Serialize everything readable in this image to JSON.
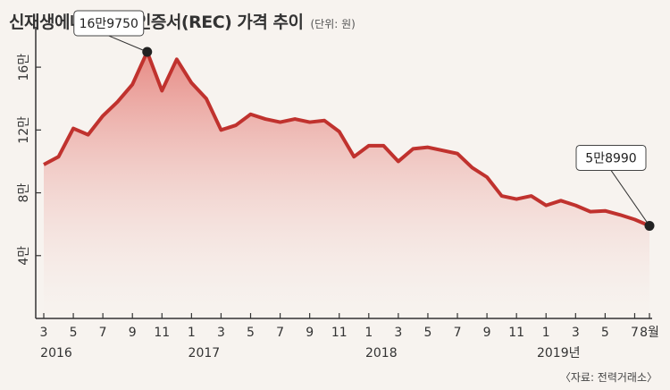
{
  "title": "신재생에너지 공급인증서(REC) 가격 추이",
  "unit": "(단위: 원)",
  "source": "〈자료: 전력거래소〉",
  "colors": {
    "line": "#c0322e",
    "fill_top": "#e78a84",
    "fill_bottom": "#f7f3ef",
    "axis": "#333333",
    "dot": "#222222"
  },
  "chart_data": {
    "type": "area",
    "ylim": [
      0,
      180000
    ],
    "y_ticks": [
      40000,
      80000,
      120000,
      160000
    ],
    "y_tick_labels": [
      "4만",
      "8만",
      "12만",
      "16만"
    ],
    "x_tick_labels": [
      "3",
      "5",
      "7",
      "9",
      "11",
      "1",
      "3",
      "5",
      "7",
      "9",
      "11",
      "1",
      "3",
      "5",
      "7",
      "9",
      "11",
      "1",
      "3",
      "5",
      "7",
      "8월"
    ],
    "x_tick_index": [
      0,
      2,
      4,
      6,
      8,
      10,
      12,
      14,
      16,
      18,
      20,
      22,
      24,
      26,
      28,
      30,
      32,
      34,
      36,
      38,
      40,
      41
    ],
    "year_labels": [
      "2016",
      "2017",
      "2018",
      "2019년"
    ],
    "year_label_index": [
      0,
      10,
      22,
      34
    ],
    "x": [
      "2016-03",
      "2016-04",
      "2016-05",
      "2016-06",
      "2016-07",
      "2016-08",
      "2016-09",
      "2016-10",
      "2016-11",
      "2016-12",
      "2017-01",
      "2017-02",
      "2017-03",
      "2017-04",
      "2017-05",
      "2017-06",
      "2017-07",
      "2017-08",
      "2017-09",
      "2017-10",
      "2017-11",
      "2017-12",
      "2018-01",
      "2018-02",
      "2018-03",
      "2018-04",
      "2018-05",
      "2018-06",
      "2018-07",
      "2018-08",
      "2018-09",
      "2018-10",
      "2018-11",
      "2018-12",
      "2019-01",
      "2019-02",
      "2019-03",
      "2019-04",
      "2019-05",
      "2019-06",
      "2019-07",
      "2019-08"
    ],
    "values": [
      98000,
      103000,
      121000,
      117000,
      129000,
      138000,
      149000,
      169750,
      145000,
      165000,
      150000,
      140000,
      120000,
      123000,
      130000,
      127000,
      125000,
      127000,
      125000,
      126000,
      119000,
      103000,
      110000,
      110000,
      100000,
      108000,
      109000,
      107000,
      105000,
      96000,
      90000,
      78000,
      76000,
      78000,
      72000,
      75000,
      72000,
      68000,
      68500,
      66000,
      63000,
      58990
    ],
    "annotations": [
      {
        "index": 7,
        "label": "16만9750"
      },
      {
        "index": 41,
        "label": "5만8990"
      }
    ]
  }
}
